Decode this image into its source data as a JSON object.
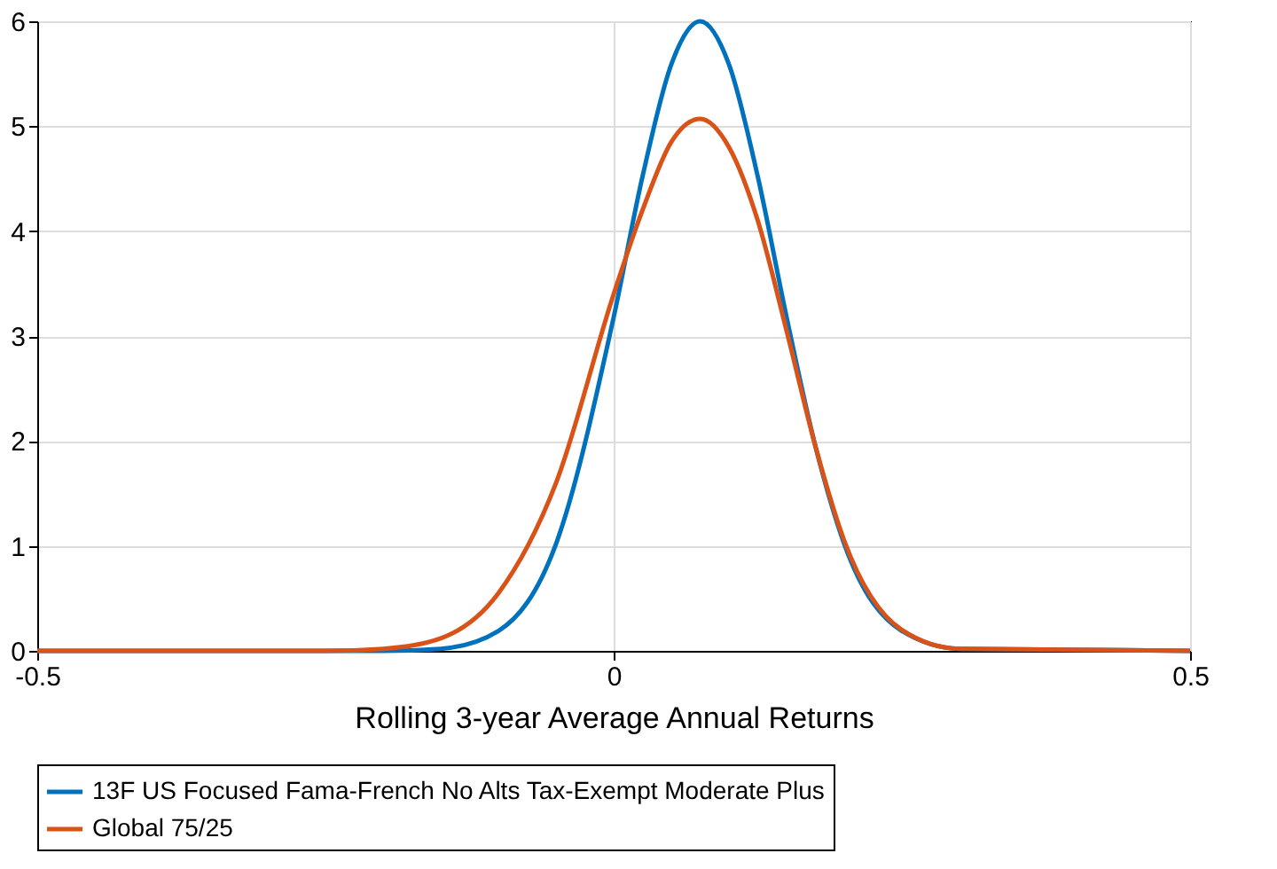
{
  "chart_data": {
    "type": "line",
    "xlabel": "Rolling 3-year Average Annual Returns",
    "xlim": [
      -0.5,
      0.5
    ],
    "xticks": [
      -0.5,
      0,
      0.5
    ],
    "ylim": [
      0,
      6
    ],
    "yticks": [
      0,
      1,
      2,
      3,
      4,
      5,
      6
    ],
    "grid": true,
    "legend": "bottom",
    "line_style": "solid",
    "marker": "none",
    "series": [
      {
        "name": "13F US Focused Fama-French No Alts Tax-Exempt Moderate Plus",
        "color": "#0072bd",
        "x": [
          -0.5,
          -0.2,
          -0.15,
          -0.1,
          -0.05,
          0,
          0.025,
          0.05,
          0.075,
          0.1,
          0.125,
          0.15,
          0.175,
          0.2,
          0.25,
          0.3,
          0.5
        ],
        "values": [
          0,
          0,
          0.02,
          0.19,
          1.02,
          3.18,
          4.52,
          5.59,
          6,
          5.59,
          4.52,
          3.18,
          1.95,
          1.02,
          0.19,
          0.02,
          0
        ]
      },
      {
        "name": "Global 75/25",
        "color": "#d95319",
        "x": [
          -0.5,
          -0.25,
          -0.2,
          -0.15,
          -0.1,
          -0.05,
          0,
          0.025,
          0.05,
          0.075,
          0.1,
          0.125,
          0.15,
          0.175,
          0.2,
          0.25,
          0.3,
          0.5
        ],
        "values": [
          0,
          0,
          0.02,
          0.12,
          0.55,
          1.6,
          3.4,
          4.2,
          4.85,
          5.07,
          4.8,
          4.1,
          3.05,
          1.95,
          1.05,
          0.2,
          0.02,
          0
        ]
      }
    ]
  }
}
